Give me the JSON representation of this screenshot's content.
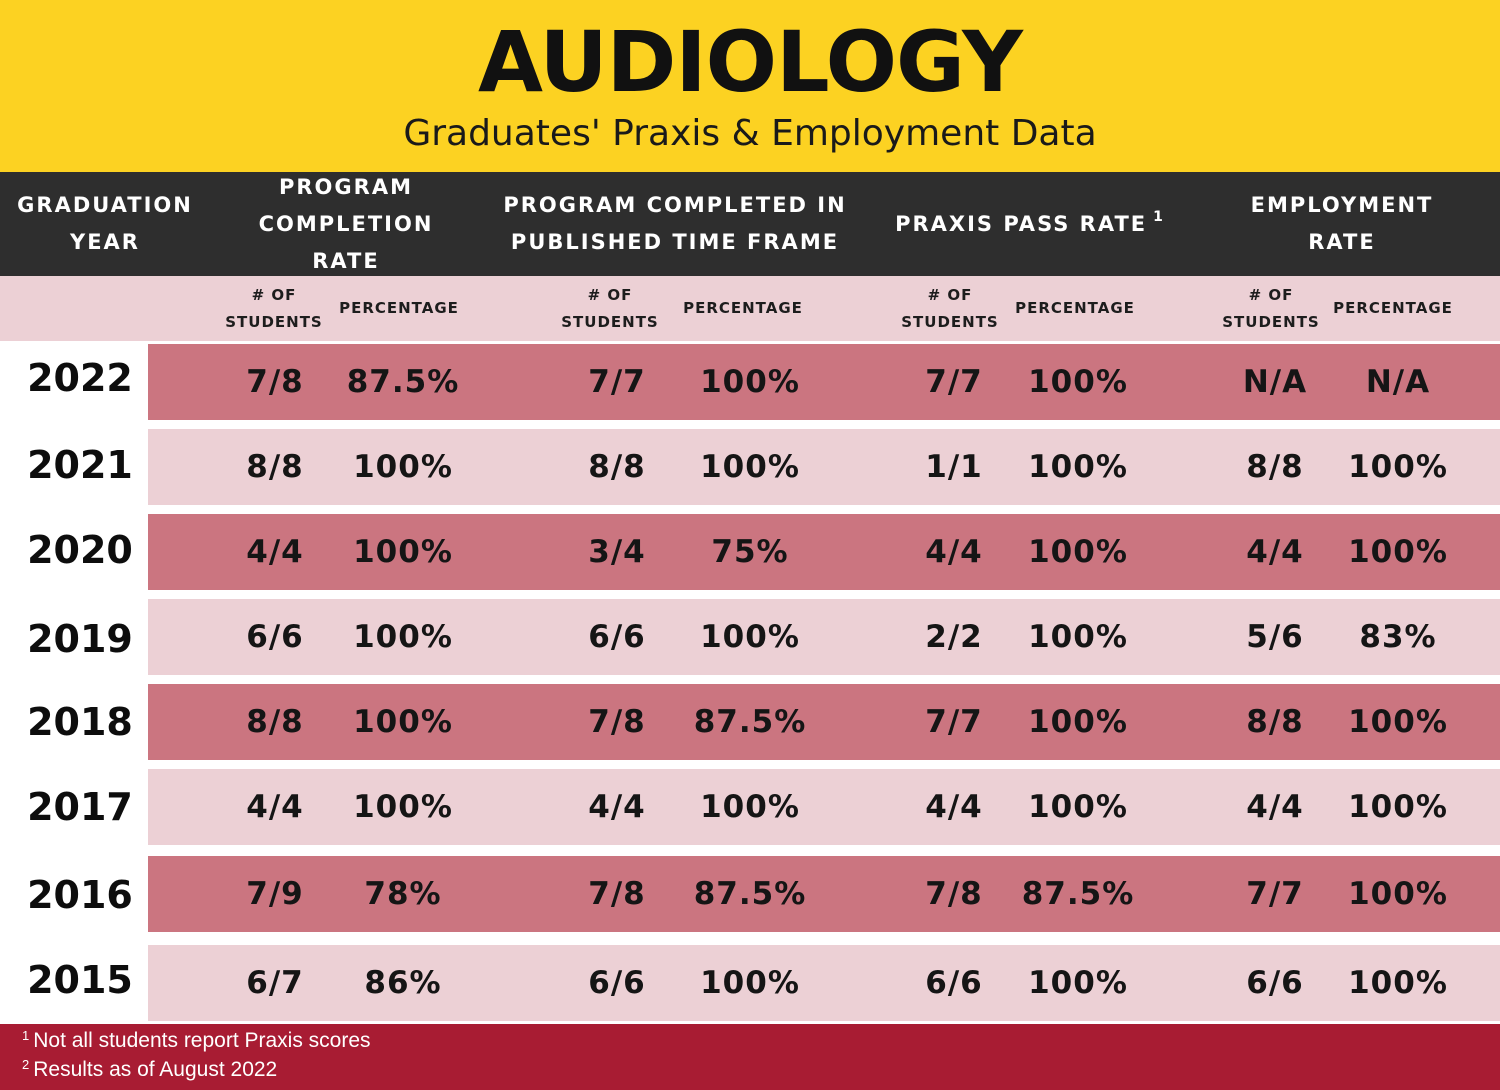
{
  "header": {
    "title": "AUDIOLOGY",
    "subtitle": "Graduates' Praxis & Employment Data"
  },
  "columns": {
    "year": [
      "GRADUATION",
      "YEAR"
    ],
    "completion": [
      "PROGRAM",
      "COMPLETION RATE"
    ],
    "timeframe": [
      "PROGRAM COMPLETED IN",
      "PUBLISHED TIME FRAME"
    ],
    "praxis": "PRAXIS PASS RATE",
    "praxis_note_mark": "1",
    "employment": [
      "EMPLOYMENT",
      "RATE"
    ]
  },
  "subheaders": {
    "students": [
      "# OF",
      "STUDENTS"
    ],
    "percentage": "PERCENTAGE"
  },
  "rows": [
    {
      "year": "2022",
      "c_n": "7/8",
      "c_p": "87.5%",
      "t_n": "7/7",
      "t_p": "100%",
      "p_n": "7/7",
      "p_p": "100%",
      "e_n": "N/A",
      "e_p": "N/A"
    },
    {
      "year": "2021",
      "c_n": "8/8",
      "c_p": "100%",
      "t_n": "8/8",
      "t_p": "100%",
      "p_n": "1/1",
      "p_p": "100%",
      "e_n": "8/8",
      "e_p": "100%"
    },
    {
      "year": "2020",
      "c_n": "4/4",
      "c_p": "100%",
      "t_n": "3/4",
      "t_p": "75%",
      "p_n": "4/4",
      "p_p": "100%",
      "e_n": "4/4",
      "e_p": "100%"
    },
    {
      "year": "2019",
      "c_n": "6/6",
      "c_p": "100%",
      "t_n": "6/6",
      "t_p": "100%",
      "p_n": "2/2",
      "p_p": "100%",
      "e_n": "5/6",
      "e_p": "83%"
    },
    {
      "year": "2018",
      "c_n": "8/8",
      "c_p": "100%",
      "t_n": "7/8",
      "t_p": "87.5%",
      "p_n": "7/7",
      "p_p": "100%",
      "e_n": "8/8",
      "e_p": "100%"
    },
    {
      "year": "2017",
      "c_n": "4/4",
      "c_p": "100%",
      "t_n": "4/4",
      "t_p": "100%",
      "p_n": "4/4",
      "p_p": "100%",
      "e_n": "4/4",
      "e_p": "100%"
    },
    {
      "year": "2016",
      "c_n": "7/9",
      "c_p": "78%",
      "t_n": "7/8",
      "t_p": "87.5%",
      "p_n": "7/8",
      "p_p": "87.5%",
      "e_n": "7/7",
      "e_p": "100%"
    },
    {
      "year": "2015",
      "c_n": "6/7",
      "c_p": "86%",
      "t_n": "6/6",
      "t_p": "100%",
      "p_n": "6/6",
      "p_p": "100%",
      "e_n": "6/6",
      "e_p": "100%"
    }
  ],
  "footnotes": [
    {
      "mark": "1",
      "text": "Not all students report Praxis scores"
    },
    {
      "mark": "2",
      "text": "Results as of August 2022"
    }
  ],
  "colors": {
    "banner": "#fcd222",
    "header_band": "#2e2e2e",
    "row_dark": "#cb7580",
    "row_light": "#ecd0d5",
    "footer": "#a81c33"
  }
}
